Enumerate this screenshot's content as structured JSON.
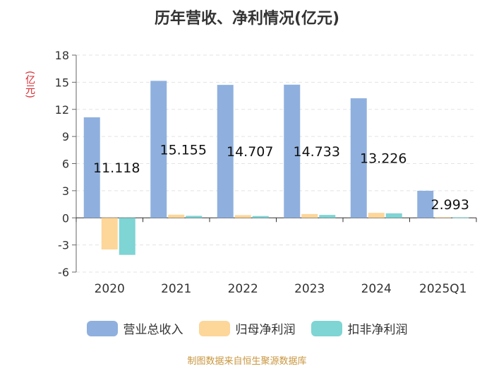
{
  "chart_data": {
    "type": "bar",
    "title": "历年营收、净利情况(亿元)",
    "ylabel": "(亿元)",
    "xlabel": "",
    "categories": [
      "2020",
      "2021",
      "2022",
      "2023",
      "2024",
      "2025Q1"
    ],
    "ylim": [
      -6,
      18
    ],
    "yticks": [
      18,
      15,
      12,
      9,
      6,
      3,
      0,
      -3,
      -6
    ],
    "series": [
      {
        "name": "营业总收入",
        "color": "#8fb0de",
        "values": [
          11.118,
          15.155,
          14.707,
          14.733,
          13.226,
          2.993
        ]
      },
      {
        "name": "归母净利润",
        "color": "#fdd699",
        "values": [
          -3.5,
          0.35,
          0.3,
          0.42,
          0.55,
          0.08
        ]
      },
      {
        "name": "扣非净利润",
        "color": "#7fd4d4",
        "values": [
          -4.1,
          0.22,
          0.2,
          0.32,
          0.5,
          0.05
        ]
      }
    ],
    "data_labels": [
      "11.118",
      "15.155",
      "14.707",
      "14.733",
      "13.226",
      "2.993"
    ],
    "legend_position": "bottom"
  },
  "source_text": "制图数据来自恒生聚源数据库"
}
